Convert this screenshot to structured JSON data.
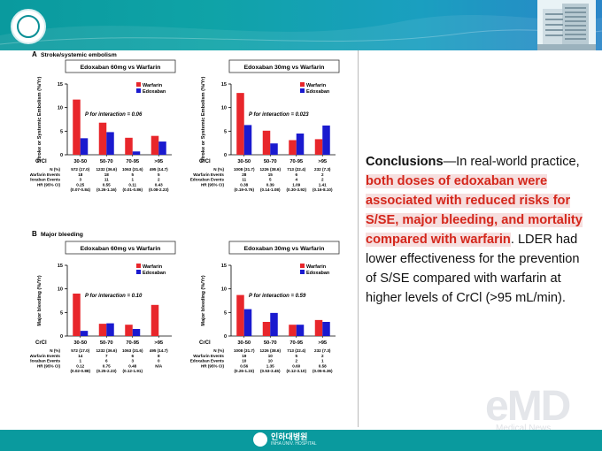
{
  "header": {
    "building_icon": "hospital-building-icon",
    "logo_icon": "university-seal-icon"
  },
  "footer": {
    "name_ko": "인하대병원",
    "name_en": "INHA UNIV. HOSPITAL"
  },
  "watermark": {
    "main": "eMD",
    "sub": "Medical News"
  },
  "conclusion": {
    "lead": "Conclusions",
    "dash": "—In real-world practice, ",
    "highlight": "both doses of edoxaban were associated with reduced risks for S/SE, major bleeding, and mortality compared with warfarin",
    "period": ".",
    "tail": "LDER had lower effectiveness for the prevention of S/SE compared with warfarin at higher levels of CrCl (>95 mL/min)."
  },
  "colors": {
    "warfarin": "#e8262b",
    "edoxaban": "#1a1acf"
  },
  "section_a": {
    "letter": "A",
    "title": "Stroke/systemic embolism"
  },
  "section_b": {
    "letter": "B",
    "title": "Major bleeding"
  },
  "table_labels": {
    "n": "N (%)",
    "warfarin": "Warfarin Events",
    "edoxaban": "Edoxaban Events",
    "hr": "HR (95% CI)"
  },
  "chart_data": [
    {
      "id": "a1",
      "type": "bar",
      "title": "Edoxaban 60mg vs Warfarin",
      "ylabel": "Stroke or Systemic Embolism (%/Yr)",
      "xlabel": "CrCl",
      "ylim": [
        0,
        15
      ],
      "yticks": [
        0,
        5,
        10,
        15
      ],
      "categories": [
        "30-50",
        "50-70",
        "70-95",
        ">95"
      ],
      "series": [
        {
          "name": "Warfarin",
          "values": [
            11.7,
            6.8,
            3.6,
            4.0
          ]
        },
        {
          "name": "Edoxaban",
          "values": [
            3.5,
            4.8,
            0.7,
            2.8
          ]
        }
      ],
      "annotation": "P for interaction = 0.06",
      "legend": "top-right",
      "table": {
        "n": [
          "572 (17.0)",
          "1232 (36.6)",
          "1063 (31.6)",
          "495 (14.7)"
        ],
        "warfarin": [
          "18",
          "18",
          "5",
          "5"
        ],
        "edoxaban": [
          "3",
          "11",
          "1",
          "2"
        ],
        "hr": [
          "0.25",
          "0.55",
          "0.11",
          "0.43"
        ],
        "ci": [
          "(0.07-0.84)",
          "(0.26-1.16)",
          "(0.01-0.86)",
          "(0.08-2.23)"
        ]
      }
    },
    {
      "id": "a2",
      "type": "bar",
      "title": "Edoxaban 30mg vs Warfarin",
      "ylabel": "Stroke or Systemic Embolism (%/Yr)",
      "xlabel": "CrCl",
      "ylim": [
        0,
        15
      ],
      "yticks": [
        0,
        5,
        10,
        15
      ],
      "categories": [
        "30-50",
        "50-70",
        "70-95",
        ">95"
      ],
      "series": [
        {
          "name": "Warfarin",
          "values": [
            13.1,
            5.1,
            3.1,
            3.3
          ]
        },
        {
          "name": "Edoxaban",
          "values": [
            6.3,
            2.4,
            4.5,
            6.2
          ]
        }
      ],
      "annotation": "P for interaction = 0.023",
      "legend": "top-right",
      "table": {
        "n": [
          "1008 (31.7)",
          "1226 (38.6)",
          "713 (22.4)",
          "232 (7.3)"
        ],
        "warfarin": [
          "28",
          "15",
          "6",
          "2"
        ],
        "edoxaban": [
          "11",
          "5",
          "4",
          "2"
        ],
        "hr": [
          "0.38",
          "0.39",
          "1.09",
          "1.41"
        ],
        "ci": [
          "(0.19-0.76)",
          "(0.14-1.08)",
          "(0.30-3.92)",
          "(0.16-8.10)"
        ]
      }
    },
    {
      "id": "b1",
      "type": "bar",
      "title": "Edoxaban 60mg vs Warfarin",
      "ylabel": "Major bleeding (%/Yr)",
      "xlabel": "CrCl",
      "ylim": [
        0,
        15
      ],
      "yticks": [
        0,
        5,
        10,
        15
      ],
      "categories": [
        "30-50",
        "50-70",
        "70-95",
        ">95"
      ],
      "series": [
        {
          "name": "Warfarin",
          "values": [
            9.0,
            2.6,
            2.4,
            6.6
          ]
        },
        {
          "name": "Edoxaban",
          "values": [
            1.1,
            2.7,
            1.5,
            0
          ]
        }
      ],
      "annotation": "P for interaction = 0.10",
      "legend": "top-right",
      "table": {
        "n": [
          "572 (17.0)",
          "1232 (36.6)",
          "1063 (31.6)",
          "495 (14.7)"
        ],
        "warfarin": [
          "14",
          "7",
          "6",
          "8"
        ],
        "edoxaban": [
          "1",
          "6",
          "3",
          "0"
        ],
        "hr": [
          "0.12",
          "0.75",
          "0.48",
          "N/A"
        ],
        "ci": [
          "(0.02-0.88)",
          "(0.25-2.23)",
          "(0.12-1.91)",
          ""
        ]
      }
    },
    {
      "id": "b2",
      "type": "bar",
      "title": "Edoxaban 30mg vs Warfarin",
      "ylabel": "Major bleeding (%/Yr)",
      "xlabel": "CrCl",
      "ylim": [
        0,
        15
      ],
      "yticks": [
        0,
        5,
        10,
        15
      ],
      "categories": [
        "30-50",
        "50-70",
        "70-95",
        ">95"
      ],
      "series": [
        {
          "name": "Warfarin",
          "values": [
            8.7,
            3.0,
            2.4,
            3.4
          ]
        },
        {
          "name": "Edoxaban",
          "values": [
            5.7,
            4.9,
            2.4,
            3.0
          ]
        }
      ],
      "annotation": "P for interaction = 0.59",
      "legend": "top-right",
      "table": {
        "n": [
          "1008 (31.7)",
          "1226 (38.6)",
          "713 (22.4)",
          "232 (7.3)"
        ],
        "warfarin": [
          "19",
          "10",
          "5",
          "2"
        ],
        "edoxaban": [
          "10",
          "10",
          "2",
          "1"
        ],
        "hr": [
          "0.56",
          "1.35",
          "0.60",
          "0.58"
        ],
        "ci": [
          "(0.26-1.23)",
          "(0.53-3.45)",
          "(0.12-3.10)",
          "(0.05-6.36)"
        ]
      }
    }
  ]
}
